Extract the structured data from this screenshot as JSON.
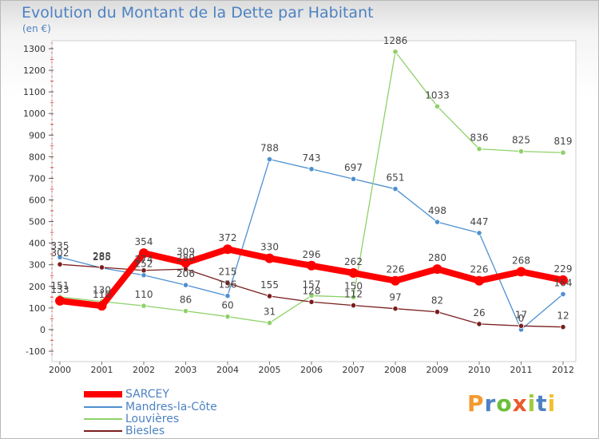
{
  "title": "Evolution du Montant de la Dette par Habitant",
  "subtitle": "(en €)",
  "logo_text": "Proxiti",
  "chart_data": {
    "type": "line",
    "title": "Evolution du Montant de la Dette par Habitant",
    "subtitle": "(en €)",
    "x": [
      "2000",
      "2001",
      "2002",
      "2003",
      "2004",
      "2005",
      "2006",
      "2007",
      "2008",
      "2009",
      "2010",
      "2011",
      "2012"
    ],
    "ylim": [
      -100,
      1300
    ],
    "yticks": [
      "-100",
      "0",
      "100",
      "200",
      "300",
      "400",
      "500",
      "600",
      "700",
      "800",
      "900",
      "1000",
      "1100",
      "1200",
      "1300"
    ],
    "grid": false,
    "legend_position": "bottom-left",
    "series": [
      {
        "name": "SARCEY",
        "color": "#ff0000",
        "values": [
          133,
          110,
          354,
          309,
          372,
          330,
          296,
          262,
          226,
          280,
          226,
          268,
          229
        ],
        "labels": [
          "133",
          "110",
          "354",
          "309",
          "372",
          "330",
          "296",
          "262",
          "226",
          "280",
          "226",
          "268",
          "229"
        ]
      },
      {
        "name": "Mandres-la-Côte",
        "color": "#4d90d0",
        "values": [
          335,
          285,
          252,
          206,
          156,
          788,
          743,
          697,
          651,
          498,
          447,
          0,
          164
        ],
        "labels": [
          "335",
          "285",
          "252",
          "206",
          "156",
          "788",
          "743",
          "697",
          "651",
          "498",
          "447",
          "0",
          "164"
        ]
      },
      {
        "name": "Louvières",
        "color": "#8fd16a",
        "values": [
          151,
          130,
          110,
          86,
          60,
          31,
          157,
          150,
          1286,
          1033,
          836,
          825,
          819
        ],
        "labels": [
          "151",
          "130",
          "110",
          "86",
          "60",
          "31",
          "157",
          "150",
          "1286",
          "1033",
          "836",
          "825",
          "819"
        ]
      },
      {
        "name": "Biesles",
        "color": "#7a1e1e",
        "values": [
          302,
          288,
          274,
          280,
          215,
          155,
          128,
          112,
          97,
          82,
          26,
          17,
          12
        ],
        "labels": [
          "302",
          "288",
          "274",
          "280",
          "215",
          "155",
          "128",
          "112",
          "97",
          "82",
          "26",
          "17",
          "12"
        ]
      }
    ]
  }
}
